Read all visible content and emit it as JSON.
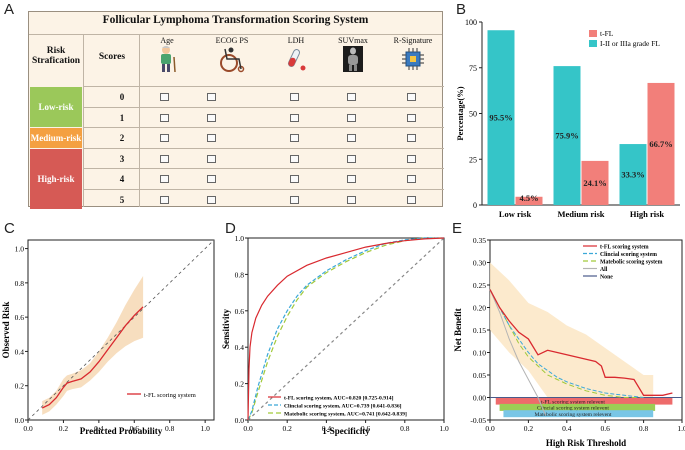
{
  "panels": {
    "a": "A",
    "b": "B",
    "c": "C",
    "d": "D",
    "e": "E"
  },
  "table": {
    "title": "Follicular Lymphoma Transformation Scoring System",
    "risk_header_line1": "Risk",
    "risk_header_line2": "Strafication",
    "scores_header": "Scores",
    "columns": [
      "Age",
      "ECOG PS",
      "LDH",
      "SUVmax",
      "R-Signature"
    ],
    "risk_groups": [
      {
        "label": "Low-risk",
        "color": "#9bc85a",
        "scores": [
          "0",
          "1"
        ]
      },
      {
        "label": "Medium-risk",
        "color": "#f4a041",
        "scores": [
          "2"
        ]
      },
      {
        "label": "High-risk",
        "color": "#d65a55",
        "scores": [
          "3",
          "4",
          "5"
        ]
      }
    ]
  },
  "chart_data": [
    {
      "panel": "B",
      "type": "bar",
      "categories": [
        "Low risk",
        "Medium risk",
        "High risk"
      ],
      "series": [
        {
          "name": "I-II or IIIa grade FL",
          "color": "#35c5c8",
          "values": [
            95.5,
            75.9,
            33.3
          ],
          "labels": [
            "95.5%",
            "75.9%",
            "33.3%"
          ]
        },
        {
          "name": "t-FL",
          "color": "#f27f7a",
          "values": [
            4.5,
            24.1,
            66.7
          ],
          "labels": [
            "4.5%",
            "24.1%",
            "66.7%"
          ]
        }
      ],
      "legend_order": [
        "t-FL",
        "I-II or IIIa grade FL"
      ],
      "ylabel": "Percentage(%)",
      "ylim": [
        0,
        100
      ],
      "yticks": [
        "0",
        "25",
        "50",
        "75",
        "100"
      ]
    },
    {
      "panel": "C",
      "type": "line",
      "xlabel": "Predicted Probability",
      "ylabel": "Observed Risk",
      "xlim": [
        0,
        1.05
      ],
      "ylim": [
        0,
        1.05
      ],
      "xticks": [
        "0.0",
        "0.2",
        "0.4",
        "0.6",
        "0.8",
        "1.0"
      ],
      "yticks": [
        "0.0",
        "0.2",
        "0.4",
        "0.6",
        "0.8",
        "1.0"
      ],
      "series": [
        {
          "name": "t-FL scoring system",
          "color": "#d9292f",
          "x": [
            0.08,
            0.12,
            0.16,
            0.2,
            0.22,
            0.25,
            0.3,
            0.35,
            0.4,
            0.45,
            0.5,
            0.55,
            0.6,
            0.65
          ],
          "y": [
            0.07,
            0.09,
            0.13,
            0.19,
            0.215,
            0.225,
            0.24,
            0.28,
            0.34,
            0.41,
            0.48,
            0.55,
            0.61,
            0.66
          ],
          "band_upper": [
            0.11,
            0.13,
            0.17,
            0.24,
            0.26,
            0.27,
            0.29,
            0.33,
            0.4,
            0.48,
            0.57,
            0.67,
            0.76,
            0.84
          ],
          "band_lower": [
            0.03,
            0.05,
            0.09,
            0.14,
            0.17,
            0.18,
            0.19,
            0.23,
            0.28,
            0.34,
            0.39,
            0.43,
            0.46,
            0.48
          ]
        },
        {
          "name": "reference",
          "style": "dashed",
          "color": "#555555",
          "x": [
            0,
            1.05
          ],
          "y": [
            0,
            1.05
          ]
        }
      ]
    },
    {
      "panel": "D",
      "type": "line",
      "xlabel": "1-Specificity",
      "ylabel": "Sensitivity",
      "xlim": [
        0,
        1
      ],
      "ylim": [
        0,
        1
      ],
      "xticks": [
        "0.0",
        "0.2",
        "0.4",
        "0.6",
        "0.8",
        "1.0"
      ],
      "yticks": [
        "0.0",
        "0.2",
        "0.4",
        "0.6",
        "0.8",
        "1.0"
      ],
      "series": [
        {
          "name": "t-FL scoring system, AUC=0.820 [0.725-0.914]",
          "color": "#d9292f",
          "x": [
            0,
            0.005,
            0.01,
            0.02,
            0.04,
            0.07,
            0.1,
            0.15,
            0.2,
            0.3,
            0.4,
            0.5,
            0.6,
            0.7,
            0.8,
            0.9,
            1.0
          ],
          "y": [
            0,
            0.28,
            0.4,
            0.48,
            0.56,
            0.63,
            0.68,
            0.74,
            0.79,
            0.85,
            0.89,
            0.92,
            0.95,
            0.97,
            0.985,
            0.995,
            1.0
          ]
        },
        {
          "name": "Clincial scoring system, AUC=0.739 [0.641-0.836]",
          "color": "#3aa8d8",
          "dash": "4,2",
          "x": [
            0,
            0.02,
            0.05,
            0.1,
            0.15,
            0.2,
            0.25,
            0.3,
            0.4,
            0.5,
            0.6,
            0.7,
            0.8,
            0.9,
            1.0
          ],
          "y": [
            0,
            0.05,
            0.18,
            0.36,
            0.5,
            0.6,
            0.68,
            0.74,
            0.82,
            0.88,
            0.93,
            0.97,
            0.99,
            1.0,
            1.0
          ]
        },
        {
          "name": "Matebolic scoring system, AUC=0.741 [0.642-0.839]",
          "color": "#a2c93a",
          "dash": "5,3",
          "x": [
            0,
            0.02,
            0.05,
            0.1,
            0.15,
            0.2,
            0.25,
            0.3,
            0.4,
            0.5,
            0.6,
            0.7,
            0.8,
            0.9,
            1.0
          ],
          "y": [
            0,
            0.04,
            0.15,
            0.32,
            0.46,
            0.57,
            0.66,
            0.73,
            0.81,
            0.87,
            0.92,
            0.96,
            0.985,
            1.0,
            1.0
          ]
        },
        {
          "name": "reference",
          "color": "#888888",
          "dash": "3,3",
          "x": [
            0,
            1
          ],
          "y": [
            0,
            1
          ]
        }
      ]
    },
    {
      "panel": "E",
      "type": "line",
      "xlabel": "High Risk Threshold",
      "ylabel": "Net Benefit",
      "xlim": [
        0,
        1
      ],
      "ylim": [
        -0.05,
        0.35
      ],
      "xticks": [
        "0.0",
        "0.2",
        "0.4",
        "0.6",
        "0.8",
        "1.0"
      ],
      "yticks": [
        "-0.05",
        "0.00",
        "0.05",
        "0.10",
        "0.15",
        "0.20",
        "0.25",
        "0.30",
        "0.35"
      ],
      "band": {
        "x": [
          0.0,
          0.1,
          0.2,
          0.3,
          0.4,
          0.5,
          0.6,
          0.7,
          0.8,
          0.85,
          0.85,
          0.7,
          0.6,
          0.5,
          0.4,
          0.3,
          0.2,
          0.1,
          0.0
        ],
        "y": [
          0.3,
          0.26,
          0.21,
          0.19,
          0.16,
          0.14,
          0.11,
          0.08,
          0.05,
          0.05,
          -0.01,
          -0.01,
          -0.01,
          -0.01,
          -0.01,
          0.0,
          0.06,
          0.1,
          0.15
        ]
      },
      "series": [
        {
          "name": "t-FL scoring system",
          "color": "#d9292f",
          "x": [
            0.0,
            0.05,
            0.1,
            0.15,
            0.2,
            0.25,
            0.3,
            0.35,
            0.4,
            0.45,
            0.5,
            0.55,
            0.58,
            0.6,
            0.65,
            0.7,
            0.75,
            0.8,
            0.85,
            0.9,
            0.95
          ],
          "y": [
            0.24,
            0.2,
            0.17,
            0.145,
            0.13,
            0.095,
            0.105,
            0.1,
            0.095,
            0.09,
            0.085,
            0.08,
            0.07,
            0.045,
            0.045,
            0.043,
            0.04,
            0.005,
            0.005,
            0.005,
            0.01
          ]
        },
        {
          "name": "Clincial scoring system",
          "color": "#3aa8d8",
          "dash": "4,2",
          "x": [
            0.0,
            0.05,
            0.1,
            0.15,
            0.2,
            0.25,
            0.3,
            0.35,
            0.4,
            0.5,
            0.6,
            0.7,
            0.8
          ],
          "y": [
            0.24,
            0.2,
            0.16,
            0.13,
            0.1,
            0.075,
            0.06,
            0.045,
            0.035,
            0.02,
            0.01,
            0.005,
            0.0
          ]
        },
        {
          "name": "Matebolic scoring system",
          "color": "#a2c93a",
          "dash": "5,3",
          "x": [
            0.0,
            0.05,
            0.1,
            0.15,
            0.2,
            0.25,
            0.3,
            0.35,
            0.4,
            0.5,
            0.6,
            0.7,
            0.8
          ],
          "y": [
            0.24,
            0.2,
            0.16,
            0.12,
            0.09,
            0.07,
            0.05,
            0.04,
            0.03,
            0.015,
            0.005,
            0.0,
            0.0
          ]
        },
        {
          "name": "All",
          "color": "#b4b4b4",
          "x": [
            0.0,
            0.05,
            0.1,
            0.15,
            0.2,
            0.25,
            0.29
          ],
          "y": [
            0.24,
            0.19,
            0.13,
            0.08,
            0.04,
            0.0,
            -0.04
          ]
        },
        {
          "name": "None",
          "color": "#4a5a8a",
          "x": [
            0.0,
            1.0
          ],
          "y": [
            0.0,
            0.0
          ]
        }
      ],
      "relevance_bars": [
        {
          "label": "t-FL scoring system relevent",
          "color": "#ee6b6b",
          "x0": 0.03,
          "x1": 0.95,
          "y": -0.008
        },
        {
          "label": "Clincial scoring system relevent",
          "color": "#9ccd55",
          "x0": 0.05,
          "x1": 0.86,
          "y": -0.022
        },
        {
          "label": "Matebolic scoring system relevent",
          "color": "#79c6e6",
          "x0": 0.07,
          "x1": 0.85,
          "y": -0.036
        }
      ]
    }
  ]
}
